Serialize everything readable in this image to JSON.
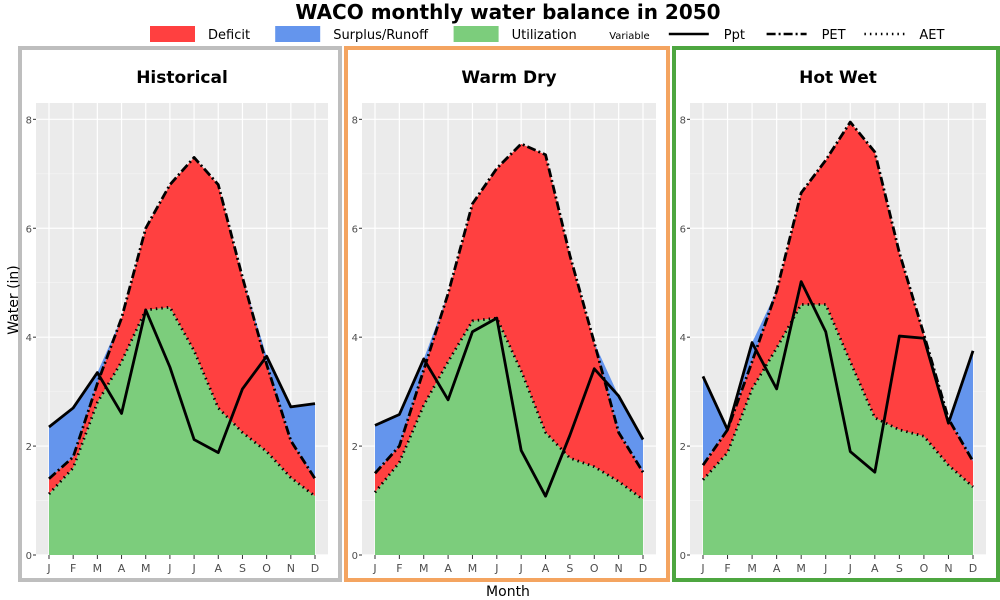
{
  "chart_data": {
    "type": "area",
    "title": "WACO monthly water balance in 2050",
    "xlabel": "Month",
    "ylabel": "Water (in)",
    "ylim": [
      0,
      8.3
    ],
    "yticks": [
      0,
      2,
      4,
      6,
      8
    ],
    "categories": [
      "J",
      "F",
      "M",
      "A",
      "M",
      "J",
      "J",
      "A",
      "S",
      "O",
      "N",
      "D"
    ],
    "legend": {
      "position": "top",
      "fill_title": "",
      "line_title": "Variable",
      "fill_items": [
        {
          "label": "Deficit",
          "color": "#ff4040"
        },
        {
          "label": "Surplus/Runoff",
          "color": "#6495ed"
        },
        {
          "label": "Utilization",
          "color": "#7ccd7c"
        }
      ],
      "line_items": [
        {
          "label": "Ppt",
          "style": "solid"
        },
        {
          "label": "PET",
          "style": "dashdot"
        },
        {
          "label": "AET",
          "style": "dotted"
        }
      ]
    },
    "panels": [
      {
        "name": "Historical",
        "border_color": "#bebebe",
        "series": [
          {
            "name": "Ppt",
            "values": [
              2.35,
              2.7,
              3.35,
              2.6,
              4.5,
              3.45,
              2.12,
              1.88,
              3.05,
              3.65,
              2.72,
              2.78
            ]
          },
          {
            "name": "PET",
            "values": [
              1.4,
              1.8,
              3.15,
              4.35,
              6.0,
              6.8,
              7.3,
              6.8,
              5.1,
              3.5,
              2.1,
              1.4
            ]
          },
          {
            "name": "AET",
            "values": [
              1.12,
              1.6,
              2.8,
              3.55,
              4.5,
              4.55,
              3.75,
              2.7,
              2.25,
              1.9,
              1.42,
              1.08
            ]
          }
        ]
      },
      {
        "name": "Warm Dry",
        "border_color": "#f4a460",
        "series": [
          {
            "name": "Ppt",
            "values": [
              2.38,
              2.58,
              3.6,
              2.85,
              4.1,
              4.35,
              1.92,
              1.08,
              2.2,
              3.42,
              2.92,
              2.12
            ]
          },
          {
            "name": "PET",
            "values": [
              1.5,
              2.0,
              3.4,
              4.8,
              6.45,
              7.1,
              7.55,
              7.35,
              5.5,
              3.9,
              2.25,
              1.52
            ]
          },
          {
            "name": "AET",
            "values": [
              1.15,
              1.7,
              2.75,
              3.55,
              4.3,
              4.35,
              3.38,
              2.25,
              1.78,
              1.62,
              1.35,
              1.02
            ]
          }
        ]
      },
      {
        "name": "Hot Wet",
        "border_color": "#4da640",
        "series": [
          {
            "name": "Ppt",
            "values": [
              3.28,
              2.3,
              3.9,
              3.05,
              5.02,
              4.1,
              1.9,
              1.52,
              4.02,
              3.98,
              2.42,
              3.75
            ]
          },
          {
            "name": "PET",
            "values": [
              1.65,
              2.3,
              3.55,
              4.85,
              6.65,
              7.25,
              7.95,
              7.4,
              5.55,
              4.05,
              2.5,
              1.72
            ]
          },
          {
            "name": "AET",
            "values": [
              1.38,
              1.88,
              3.05,
              3.8,
              4.6,
              4.6,
              3.55,
              2.52,
              2.3,
              2.18,
              1.65,
              1.25
            ]
          }
        ]
      }
    ]
  }
}
